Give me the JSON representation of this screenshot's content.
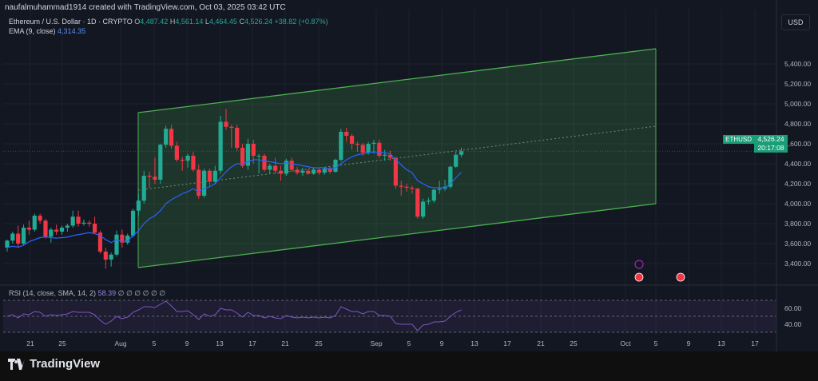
{
  "header": {
    "attribution": "naufalmuhammad1914 created with TradingView.com, Oct 03, 2025 03:42 UTC"
  },
  "legend": {
    "symbol": "Ethereum / U.S. Dollar · 1D · CRYPTO",
    "open_label": "O",
    "open": "4,487.42",
    "high_label": "H",
    "high": "4,561.14",
    "low_label": "L",
    "low": "4,464.45",
    "close_label": "C",
    "close": "4,526.24",
    "change": "+38.82 (+0.87%)",
    "ema_label": "EMA (9, close)",
    "ema_value": "4,314.35"
  },
  "rsi_legend": {
    "label": "RSI (14, close, SMA, 14, 2)",
    "value": "58.39",
    "placeholders": "∅ ∅ ∅ ∅ ∅ ∅"
  },
  "currency_button": "USD",
  "price_tag": {
    "symbol": "ETHUSD",
    "price": "4,526.24",
    "countdown": "20:17:08"
  },
  "branding": {
    "name": "TradingView"
  },
  "colors": {
    "up": "#26a69a",
    "down": "#ef5350",
    "ema": "#2962ff",
    "rsi": "#7e57c2",
    "channel": "#4caf50"
  },
  "chart_data": {
    "type": "candlestick",
    "y_axis": {
      "ticks": [
        "5,400.00",
        "5,200.00",
        "5,000.00",
        "4,800.00",
        "4,600.00",
        "4,400.00",
        "4,200.00",
        "4,000.00",
        "3,800.00",
        "3,600.00",
        "3,400.00"
      ],
      "tick_values": [
        5400,
        5200,
        5000,
        4800,
        4600,
        4400,
        4200,
        4000,
        3800,
        3600,
        3400
      ],
      "range": [
        3250,
        5560
      ]
    },
    "x_axis": {
      "ticks": [
        "21",
        "25",
        "Aug",
        "5",
        "9",
        "13",
        "17",
        "21",
        "25",
        "Sep",
        "5",
        "9",
        "13",
        "17",
        "21",
        "25",
        "Oct",
        "5",
        "9",
        "13",
        "17"
      ]
    },
    "candles": [
      {
        "o": 3560,
        "h": 3640,
        "l": 3520,
        "c": 3630
      },
      {
        "o": 3630,
        "h": 3720,
        "l": 3600,
        "c": 3700
      },
      {
        "o": 3700,
        "h": 3780,
        "l": 3560,
        "c": 3600
      },
      {
        "o": 3600,
        "h": 3790,
        "l": 3580,
        "c": 3760
      },
      {
        "o": 3760,
        "h": 3830,
        "l": 3690,
        "c": 3740
      },
      {
        "o": 3740,
        "h": 3900,
        "l": 3720,
        "c": 3880
      },
      {
        "o": 3880,
        "h": 3900,
        "l": 3800,
        "c": 3830
      },
      {
        "o": 3830,
        "h": 3850,
        "l": 3650,
        "c": 3670
      },
      {
        "o": 3670,
        "h": 3760,
        "l": 3610,
        "c": 3740
      },
      {
        "o": 3740,
        "h": 3790,
        "l": 3690,
        "c": 3720
      },
      {
        "o": 3720,
        "h": 3780,
        "l": 3690,
        "c": 3760
      },
      {
        "o": 3760,
        "h": 3800,
        "l": 3720,
        "c": 3780
      },
      {
        "o": 3780,
        "h": 3930,
        "l": 3760,
        "c": 3870
      },
      {
        "o": 3870,
        "h": 3930,
        "l": 3770,
        "c": 3800
      },
      {
        "o": 3800,
        "h": 3840,
        "l": 3780,
        "c": 3810
      },
      {
        "o": 3810,
        "h": 3830,
        "l": 3770,
        "c": 3800
      },
      {
        "o": 3800,
        "h": 3870,
        "l": 3700,
        "c": 3710
      },
      {
        "o": 3710,
        "h": 3730,
        "l": 3500,
        "c": 3520
      },
      {
        "o": 3520,
        "h": 3560,
        "l": 3350,
        "c": 3440
      },
      {
        "o": 3440,
        "h": 3510,
        "l": 3370,
        "c": 3490
      },
      {
        "o": 3490,
        "h": 3730,
        "l": 3470,
        "c": 3690
      },
      {
        "o": 3690,
        "h": 3740,
        "l": 3560,
        "c": 3610
      },
      {
        "o": 3610,
        "h": 3700,
        "l": 3590,
        "c": 3680
      },
      {
        "o": 3680,
        "h": 3950,
        "l": 3660,
        "c": 3930
      },
      {
        "o": 3930,
        "h": 4100,
        "l": 3880,
        "c": 4030
      },
      {
        "o": 4030,
        "h": 4330,
        "l": 4000,
        "c": 4280
      },
      {
        "o": 4280,
        "h": 4320,
        "l": 4160,
        "c": 4270
      },
      {
        "o": 4270,
        "h": 4460,
        "l": 4200,
        "c": 4240
      },
      {
        "o": 4240,
        "h": 4600,
        "l": 4200,
        "c": 4590
      },
      {
        "o": 4590,
        "h": 4780,
        "l": 4560,
        "c": 4750
      },
      {
        "o": 4750,
        "h": 4790,
        "l": 4550,
        "c": 4580
      },
      {
        "o": 4580,
        "h": 4620,
        "l": 4420,
        "c": 4440
      },
      {
        "o": 4440,
        "h": 4470,
        "l": 4330,
        "c": 4430
      },
      {
        "o": 4430,
        "h": 4500,
        "l": 4360,
        "c": 4480
      },
      {
        "o": 4480,
        "h": 4520,
        "l": 4320,
        "c": 4340
      },
      {
        "o": 4340,
        "h": 4390,
        "l": 4050,
        "c": 4080
      },
      {
        "o": 4080,
        "h": 4350,
        "l": 4060,
        "c": 4330
      },
      {
        "o": 4330,
        "h": 4350,
        "l": 4180,
        "c": 4220
      },
      {
        "o": 4220,
        "h": 4380,
        "l": 4200,
        "c": 4330
      },
      {
        "o": 4330,
        "h": 4880,
        "l": 4300,
        "c": 4820
      },
      {
        "o": 4820,
        "h": 4950,
        "l": 4740,
        "c": 4770
      },
      {
        "o": 4770,
        "h": 4790,
        "l": 4560,
        "c": 4760
      },
      {
        "o": 4760,
        "h": 4790,
        "l": 4530,
        "c": 4560
      },
      {
        "o": 4560,
        "h": 4600,
        "l": 4360,
        "c": 4380
      },
      {
        "o": 4380,
        "h": 4650,
        "l": 4340,
        "c": 4600
      },
      {
        "o": 4600,
        "h": 4640,
        "l": 4400,
        "c": 4480
      },
      {
        "o": 4480,
        "h": 4500,
        "l": 4300,
        "c": 4480
      },
      {
        "o": 4480,
        "h": 4500,
        "l": 4320,
        "c": 4340
      },
      {
        "o": 4340,
        "h": 4400,
        "l": 4300,
        "c": 4380
      },
      {
        "o": 4380,
        "h": 4460,
        "l": 4300,
        "c": 4330
      },
      {
        "o": 4330,
        "h": 4380,
        "l": 4230,
        "c": 4300
      },
      {
        "o": 4300,
        "h": 4450,
        "l": 4280,
        "c": 4430
      },
      {
        "o": 4430,
        "h": 4460,
        "l": 4320,
        "c": 4340
      },
      {
        "o": 4340,
        "h": 4370,
        "l": 4290,
        "c": 4310
      },
      {
        "o": 4310,
        "h": 4360,
        "l": 4280,
        "c": 4330
      },
      {
        "o": 4330,
        "h": 4350,
        "l": 4290,
        "c": 4300
      },
      {
        "o": 4300,
        "h": 4360,
        "l": 4290,
        "c": 4340
      },
      {
        "o": 4340,
        "h": 4360,
        "l": 4290,
        "c": 4310
      },
      {
        "o": 4310,
        "h": 4360,
        "l": 4290,
        "c": 4350
      },
      {
        "o": 4350,
        "h": 4370,
        "l": 4300,
        "c": 4320
      },
      {
        "o": 4320,
        "h": 4450,
        "l": 4310,
        "c": 4440
      },
      {
        "o": 4440,
        "h": 4750,
        "l": 4420,
        "c": 4720
      },
      {
        "o": 4720,
        "h": 4760,
        "l": 4620,
        "c": 4680
      },
      {
        "o": 4680,
        "h": 4700,
        "l": 4540,
        "c": 4600
      },
      {
        "o": 4600,
        "h": 4620,
        "l": 4520,
        "c": 4590
      },
      {
        "o": 4590,
        "h": 4610,
        "l": 4480,
        "c": 4510
      },
      {
        "o": 4510,
        "h": 4620,
        "l": 4490,
        "c": 4600
      },
      {
        "o": 4600,
        "h": 4640,
        "l": 4500,
        "c": 4610
      },
      {
        "o": 4610,
        "h": 4640,
        "l": 4460,
        "c": 4480
      },
      {
        "o": 4480,
        "h": 4540,
        "l": 4430,
        "c": 4490
      },
      {
        "o": 4490,
        "h": 4530,
        "l": 4430,
        "c": 4460
      },
      {
        "o": 4460,
        "h": 4470,
        "l": 4150,
        "c": 4180
      },
      {
        "o": 4180,
        "h": 4230,
        "l": 4080,
        "c": 4170
      },
      {
        "o": 4170,
        "h": 4200,
        "l": 4120,
        "c": 4160
      },
      {
        "o": 4160,
        "h": 4180,
        "l": 4100,
        "c": 4150
      },
      {
        "o": 4150,
        "h": 4160,
        "l": 3850,
        "c": 3870
      },
      {
        "o": 3870,
        "h": 4050,
        "l": 3850,
        "c": 4020
      },
      {
        "o": 4020,
        "h": 4060,
        "l": 3990,
        "c": 4030
      },
      {
        "o": 4030,
        "h": 4150,
        "l": 4010,
        "c": 4140
      },
      {
        "o": 4140,
        "h": 4230,
        "l": 4100,
        "c": 4150
      },
      {
        "o": 4150,
        "h": 4240,
        "l": 4130,
        "c": 4170
      },
      {
        "o": 4170,
        "h": 4380,
        "l": 4150,
        "c": 4370
      },
      {
        "o": 4370,
        "h": 4520,
        "l": 4360,
        "c": 4490
      },
      {
        "o": 4490,
        "h": 4561,
        "l": 4464,
        "c": 4526
      }
    ],
    "ema": [
      3560,
      3574,
      3564,
      3583,
      3620,
      3640,
      3660,
      3668,
      3660,
      3655,
      3660,
      3665,
      3680,
      3690,
      3700,
      3710,
      3700,
      3680,
      3640,
      3610,
      3640,
      3620,
      3625,
      3680,
      3730,
      3800,
      3850,
      3880,
      3930,
      4000,
      4040,
      4070,
      4100,
      4120,
      4150,
      4120,
      4150,
      4170,
      4200,
      4260,
      4320,
      4370,
      4400,
      4400,
      4420,
      4440,
      4440,
      4430,
      4420,
      4410,
      4400,
      4410,
      4400,
      4390,
      4380,
      4370,
      4360,
      4360,
      4360,
      4350,
      4360,
      4400,
      4440,
      4470,
      4490,
      4500,
      4510,
      4520,
      4510,
      4510,
      4500,
      4440,
      4390,
      4340,
      4310,
      4230,
      4200,
      4170,
      4160,
      4160,
      4160,
      4200,
      4260,
      4314
    ],
    "rsi": {
      "levels": [
        70,
        50,
        30
      ],
      "ticks": [
        "60.00",
        "40.00"
      ],
      "tick_values": [
        60,
        40
      ],
      "values": [
        50,
        52,
        48,
        53,
        52,
        56,
        55,
        50,
        52,
        51,
        52,
        53,
        56,
        55,
        55,
        55,
        52,
        45,
        40,
        44,
        50,
        47,
        49,
        55,
        58,
        62,
        62,
        61,
        65,
        69,
        63,
        56,
        56,
        57,
        52,
        46,
        53,
        50,
        52,
        60,
        58,
        58,
        54,
        49,
        55,
        51,
        51,
        48,
        50,
        48,
        47,
        51,
        49,
        48,
        49,
        48,
        49,
        48,
        49,
        48,
        51,
        62,
        59,
        56,
        56,
        53,
        56,
        56,
        51,
        51,
        50,
        41,
        40,
        40,
        40,
        32,
        39,
        40,
        43,
        43,
        44,
        50,
        55,
        58
      ]
    }
  }
}
